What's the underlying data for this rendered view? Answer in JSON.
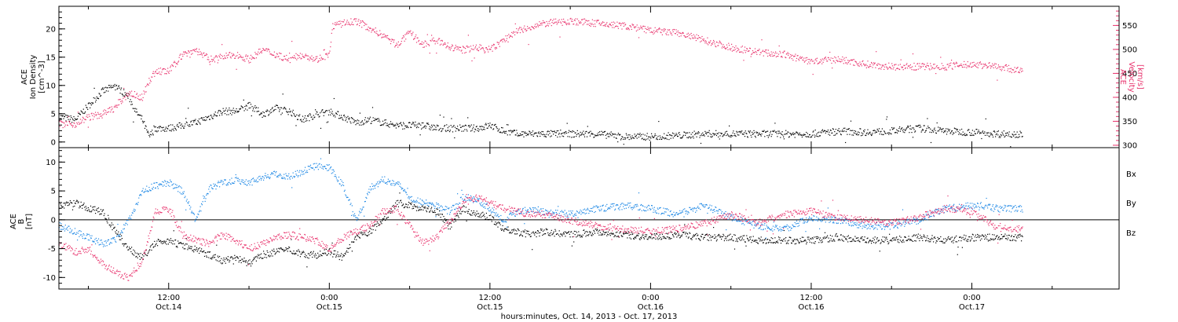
{
  "x_axis": {
    "label": "hours:minutes, Oct. 14, 2013 - Oct. 17, 2013",
    "ticks": [
      {
        "t": 12,
        "time": "12:00",
        "day": "Oct.14"
      },
      {
        "t": 24,
        "time": "0:00",
        "day": "Oct.15"
      },
      {
        "t": 36,
        "time": "12:00",
        "day": "Oct.15"
      },
      {
        "t": 48,
        "time": "0:00",
        "day": "Oct.16"
      },
      {
        "t": 60,
        "time": "12:00",
        "day": "Oct.16"
      },
      {
        "t": 72,
        "time": "0:00",
        "day": "Oct.17"
      }
    ]
  },
  "colors": {
    "black": "#000000",
    "pink": "#e8336d",
    "blue": "#1e88e5"
  },
  "chart_data": [
    {
      "type": "scatter",
      "panel": "top",
      "x_range_hours": [
        3.8,
        83.0
      ],
      "x_is_hours_since": "Oct. 14, 2013 0:00",
      "grid": false,
      "left_axis": {
        "label_lines": [
          "ACE",
          "Ion Density",
          "[cm^-3]"
        ],
        "ylim": [
          -1,
          24
        ],
        "ticks": [
          "0",
          "5",
          "10",
          "15",
          "20"
        ]
      },
      "right_axis": {
        "label_lines": [
          "ACE",
          "Velocity",
          "[km/s]"
        ],
        "ylim": [
          295,
          590
        ],
        "ticks": [
          "300",
          "350",
          "400",
          "450",
          "500",
          "550"
        ],
        "color": "#e8336d"
      },
      "series": [
        {
          "axis": "left",
          "color": "#000000",
          "x": [
            3.8,
            5,
            6,
            7,
            8,
            9,
            9.5,
            10,
            10.5,
            11,
            12,
            13,
            14,
            15,
            16,
            17,
            18,
            19,
            20,
            21,
            22,
            23,
            24,
            25,
            26,
            27,
            28,
            29,
            30,
            31,
            32,
            33,
            34,
            35,
            36,
            37,
            38,
            39,
            40,
            42,
            44,
            46,
            48,
            50,
            52,
            54,
            56,
            58,
            60,
            62,
            64,
            66,
            68,
            70,
            72,
            74,
            75.8
          ],
          "y": [
            4.5,
            4.0,
            6.5,
            9.0,
            10.0,
            8.0,
            5.5,
            4.0,
            1.0,
            2.5,
            2.5,
            3.0,
            3.5,
            4.5,
            5.5,
            5.5,
            6.5,
            5.0,
            6.0,
            5.5,
            4.0,
            5.0,
            5.5,
            4.5,
            3.5,
            4.0,
            3.5,
            3.0,
            3.0,
            3.0,
            2.5,
            2.5,
            2.5,
            2.5,
            3.0,
            2.0,
            1.5,
            1.5,
            1.5,
            1.5,
            1.5,
            1.0,
            1.0,
            1.2,
            1.5,
            1.5,
            1.5,
            1.5,
            1.5,
            2.0,
            1.8,
            2.0,
            2.5,
            2.0,
            1.8,
            1.5,
            1.5
          ]
        },
        {
          "axis": "right",
          "color": "#e8336d",
          "x": [
            3.8,
            5,
            6,
            7,
            8,
            9,
            10,
            10.5,
            11,
            12,
            13,
            14,
            15,
            16,
            17,
            18,
            19,
            20,
            21,
            22,
            23,
            24,
            24.2,
            25,
            26,
            27,
            28,
            29,
            30,
            31,
            32,
            33,
            34,
            35,
            36,
            37,
            38,
            39,
            40,
            42,
            44,
            46,
            48,
            50,
            52,
            54,
            56,
            58,
            60,
            62,
            64,
            66,
            68,
            70,
            72,
            74,
            75.8
          ],
          "y": [
            345,
            345,
            360,
            365,
            380,
            410,
            400,
            435,
            455,
            455,
            490,
            500,
            480,
            485,
            490,
            480,
            500,
            490,
            480,
            490,
            480,
            490,
            550,
            555,
            560,
            545,
            530,
            510,
            535,
            510,
            520,
            505,
            500,
            505,
            500,
            520,
            540,
            545,
            555,
            560,
            555,
            550,
            540,
            535,
            520,
            505,
            495,
            490,
            475,
            480,
            470,
            465,
            465,
            465,
            470,
            465,
            455
          ]
        }
      ]
    },
    {
      "type": "scatter",
      "panel": "bottom",
      "x_range_hours": [
        3.8,
        83.0
      ],
      "grid": false,
      "zero_line": true,
      "left_axis": {
        "label_lines": [
          "ACE",
          "B",
          "[nT]"
        ],
        "ylim": [
          -12,
          12.5
        ],
        "ticks": [
          "-10",
          "-5",
          "0",
          "5",
          "10"
        ]
      },
      "legend_placement": "right",
      "series": [
        {
          "name": "Bx",
          "color": "#000000",
          "x": [
            3.8,
            5,
            6,
            7,
            8,
            9,
            10,
            11,
            12,
            13,
            14,
            15,
            16,
            17,
            18,
            19,
            20,
            21,
            22,
            23,
            24,
            25,
            26,
            27,
            28,
            29,
            30,
            31,
            32,
            33,
            34,
            35,
            36,
            37,
            38,
            39,
            40,
            42,
            44,
            46,
            48,
            50,
            52,
            54,
            56,
            58,
            60,
            62,
            64,
            66,
            68,
            70,
            72,
            74,
            75.8
          ],
          "y": [
            2.5,
            3.0,
            2.0,
            1.5,
            -2.0,
            -5.0,
            -6.5,
            -4.0,
            -3.5,
            -4.5,
            -5.0,
            -6.0,
            -7.0,
            -6.5,
            -7.5,
            -6.0,
            -5.5,
            -5.0,
            -6.0,
            -6.0,
            -5.5,
            -6.5,
            -3.0,
            -2.0,
            0.0,
            3.0,
            2.5,
            2.0,
            1.5,
            -1.0,
            2.0,
            1.0,
            0.5,
            -1.5,
            -2.0,
            -2.5,
            -2.0,
            -2.5,
            -2.0,
            -2.5,
            -3.0,
            -2.5,
            -3.0,
            -3.0,
            -3.5,
            -3.5,
            -3.5,
            -3.0,
            -3.5,
            -3.5,
            -3.0,
            -3.5,
            -3.0,
            -3.0,
            -3.0
          ]
        },
        {
          "name": "By",
          "color": "#1e88e5",
          "x": [
            3.8,
            5,
            6,
            7,
            8,
            9,
            10,
            11,
            12,
            13,
            14,
            15,
            16,
            17,
            18,
            19,
            20,
            21,
            22,
            23,
            24,
            25,
            26,
            27,
            28,
            29,
            30,
            31,
            32,
            33,
            34,
            35,
            36,
            37,
            38,
            39,
            40,
            42,
            44,
            46,
            48,
            50,
            52,
            54,
            56,
            58,
            60,
            62,
            64,
            66,
            68,
            70,
            72,
            74,
            75.8
          ],
          "y": [
            -1.0,
            -2.0,
            -3.0,
            -4.0,
            -3.5,
            0.0,
            5.0,
            6.0,
            6.5,
            5.0,
            0.0,
            5.5,
            6.5,
            7.0,
            6.5,
            7.5,
            8.0,
            7.5,
            8.5,
            9.5,
            9.0,
            6.0,
            0.0,
            5.5,
            7.0,
            6.5,
            4.0,
            3.0,
            2.5,
            1.5,
            4.0,
            3.5,
            2.0,
            0.0,
            1.5,
            2.0,
            1.5,
            1.0,
            2.0,
            2.5,
            2.0,
            1.0,
            2.5,
            0.5,
            -1.0,
            -1.5,
            0.5,
            0.0,
            -1.0,
            -1.0,
            0.0,
            2.0,
            2.5,
            2.0,
            2.0
          ]
        },
        {
          "name": "Bz",
          "color": "#e8336d",
          "x": [
            3.8,
            5,
            6,
            7,
            8,
            9,
            10,
            11,
            12,
            13,
            14,
            15,
            16,
            17,
            18,
            19,
            20,
            21,
            22,
            23,
            24,
            25,
            26,
            27,
            28,
            29,
            30,
            31,
            32,
            33,
            34,
            35,
            36,
            37,
            38,
            39,
            40,
            42,
            44,
            46,
            48,
            50,
            52,
            54,
            56,
            58,
            60,
            62,
            64,
            66,
            68,
            70,
            72,
            74,
            75.8
          ],
          "y": [
            -4.0,
            -5.5,
            -5.0,
            -7.5,
            -9.0,
            -10.0,
            -7.0,
            1.5,
            2.0,
            -2.5,
            -3.5,
            -4.0,
            -2.5,
            -3.5,
            -5.0,
            -4.0,
            -3.0,
            -2.5,
            -3.0,
            -3.5,
            -5.0,
            -3.0,
            -2.0,
            -1.0,
            1.5,
            2.0,
            -1.0,
            -4.0,
            -3.0,
            0.0,
            3.0,
            4.0,
            3.0,
            2.0,
            1.5,
            1.0,
            1.0,
            0.0,
            -1.0,
            -1.5,
            -2.0,
            -1.5,
            -0.5,
            1.0,
            -0.5,
            1.0,
            1.5,
            0.5,
            0.0,
            -0.5,
            0.5,
            2.0,
            1.5,
            -1.5,
            -1.5
          ]
        }
      ]
    }
  ]
}
